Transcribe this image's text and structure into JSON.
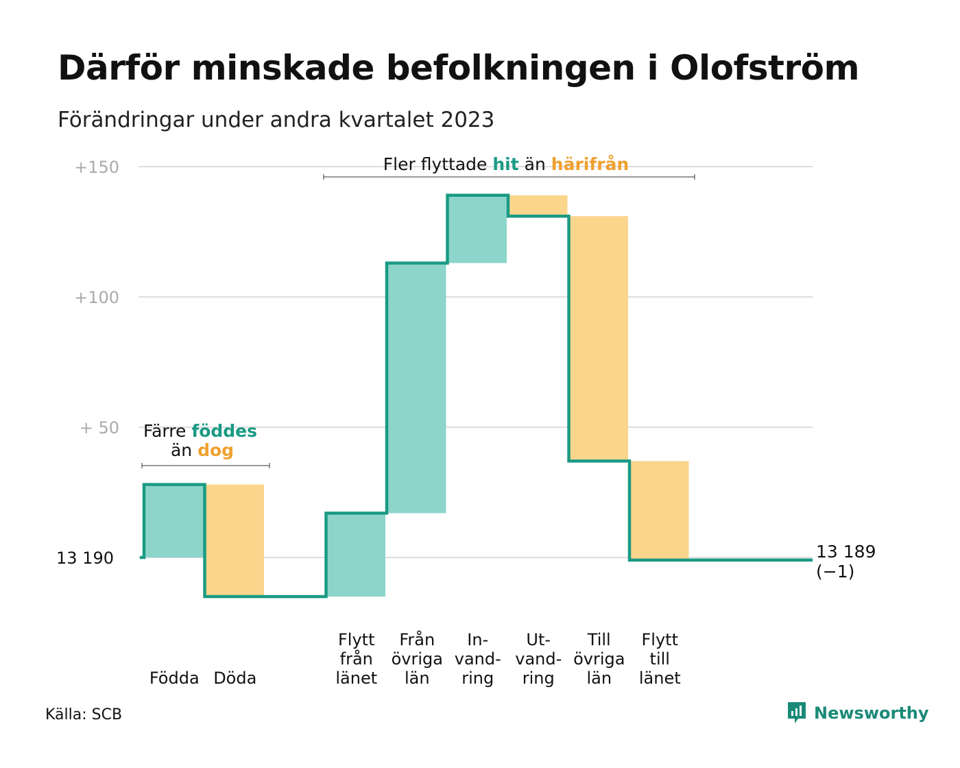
{
  "title": "Därför minskade befolkningen i Olofström",
  "subtitle": "Förändringar under andra kvartalet 2023",
  "source": "Källa: SCB",
  "brand": {
    "name": "Newsworthy",
    "icon": "newsworthy-logo-icon"
  },
  "colors": {
    "increase_fill": "#8dd5cb",
    "decrease_fill": "#fad68d",
    "line": "#1a9a84",
    "grid": "#dddddd",
    "accent_teal": "#1a9a84",
    "accent_orange": "#f0a030"
  },
  "annotations": {
    "births_deaths": {
      "prefix": "Färre",
      "teal": "föddes",
      "mid": "än",
      "orange": "dog"
    },
    "migration": {
      "prefix": "Fler flyttade",
      "teal": "hit",
      "mid": "än",
      "orange": "härifrån"
    }
  },
  "chart_data": {
    "type": "waterfall",
    "start_value": 13190,
    "start_label": "13 190",
    "end_value": 13189,
    "end_label": "13 189",
    "end_change_label": "(−1)",
    "y_ticks": [
      {
        "value": 50,
        "label": "+  50"
      },
      {
        "value": 100,
        "label": "+100"
      },
      {
        "value": 150,
        "label": "+150"
      }
    ],
    "ylim": [
      -20,
      160
    ],
    "steps": [
      {
        "label_lines": [
          "Födda"
        ],
        "value": 28,
        "kind": "increase"
      },
      {
        "label_lines": [
          "Döda"
        ],
        "value": -43,
        "kind": "decrease"
      },
      {
        "label_lines": [],
        "value": 0,
        "kind": "gap"
      },
      {
        "label_lines": [
          "Flytt",
          "från",
          "länet"
        ],
        "value": 32,
        "kind": "increase"
      },
      {
        "label_lines": [
          "Från",
          "övriga",
          "län"
        ],
        "value": 96,
        "kind": "increase"
      },
      {
        "label_lines": [
          "In-",
          "vand-",
          "ring"
        ],
        "value": 26,
        "kind": "increase"
      },
      {
        "label_lines": [
          "Ut-",
          "vand-",
          "ring"
        ],
        "value": -8,
        "kind": "decrease"
      },
      {
        "label_lines": [
          "Till",
          "övriga",
          "län"
        ],
        "value": -94,
        "kind": "decrease"
      },
      {
        "label_lines": [
          "Flytt",
          "till",
          "länet"
        ],
        "value": -38,
        "kind": "decrease"
      }
    ]
  }
}
